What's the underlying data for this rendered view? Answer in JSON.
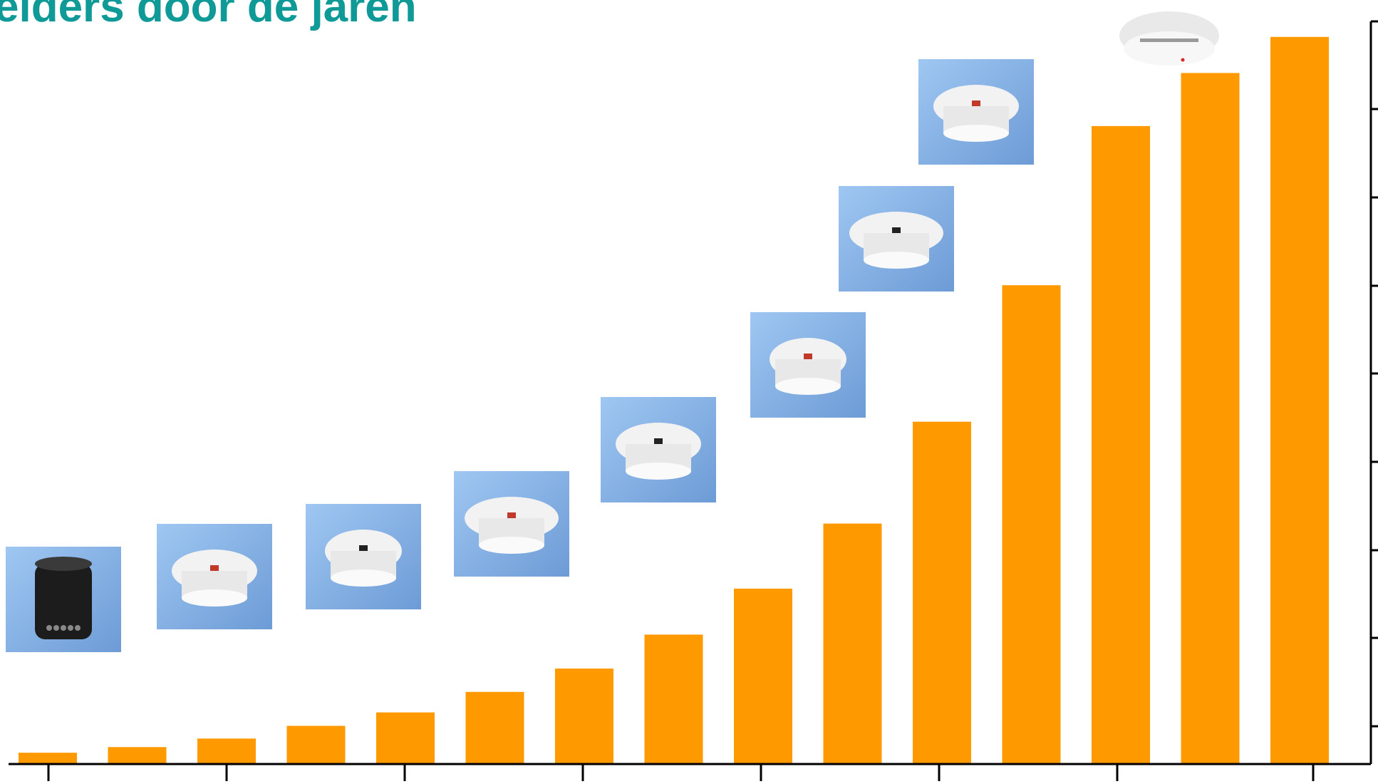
{
  "title": "elders door de jaren",
  "colors": {
    "title": "#0f9a97",
    "bar": "#ff9900",
    "axis": "#000000",
    "thumb_bg": "#86b2e6",
    "detector_body": "#f2f2f2"
  },
  "chart_data": {
    "type": "bar",
    "title": "elders door de jaren",
    "xlabel": "",
    "ylabel": "",
    "categories": [
      "",
      "",
      "",
      "",
      "",
      "",
      "",
      "",
      "",
      "",
      "",
      "",
      "",
      "",
      ""
    ],
    "values": [
      1.6,
      2.4,
      3.6,
      5.4,
      7.3,
      10.2,
      13.5,
      18.3,
      24.8,
      34.0,
      48.4,
      67.7,
      90.2,
      97.7,
      102.8
    ],
    "ylim": [
      0,
      105
    ],
    "grid": false,
    "legend": "none",
    "axis_position": "right",
    "images": [
      {
        "icon": "black-cylindrical-detector-icon"
      },
      {
        "icon": "white-socket-detector-icon"
      },
      {
        "icon": "round-flat-detector-icon"
      },
      {
        "icon": "dome-detector-icon"
      },
      {
        "icon": "led-detector-icon"
      },
      {
        "icon": "vented-detector-icon"
      },
      {
        "icon": "wide-dome-detector-icon"
      },
      {
        "icon": "optical-detector-icon"
      },
      {
        "icon": "modern-flat-detector-icon"
      }
    ]
  }
}
